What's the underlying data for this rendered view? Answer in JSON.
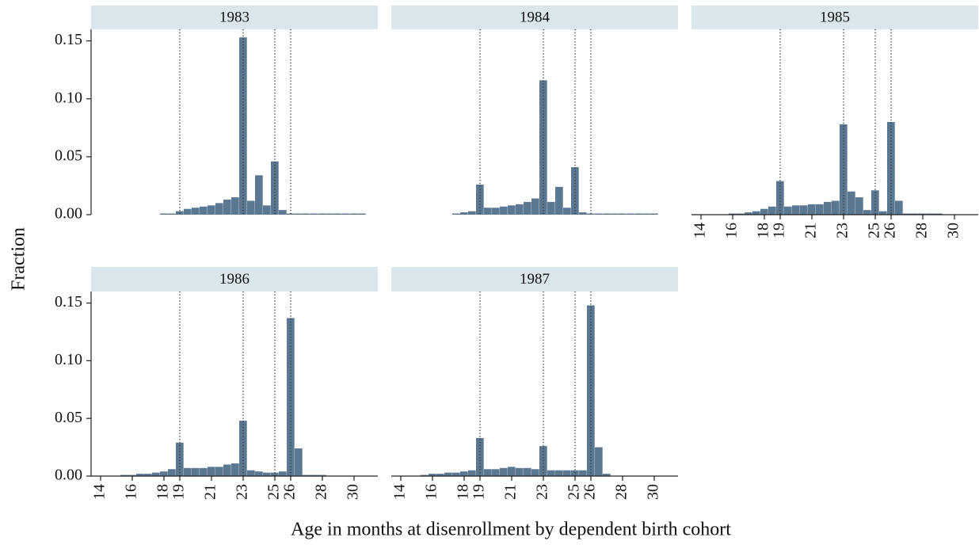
{
  "y_label": "Fraction",
  "x_label": "Age in months at disenrollment by dependent birth cohort",
  "chart_data": [
    {
      "type": "histogram",
      "title": "1983",
      "color": "#5b7892",
      "xlim": [
        13.4,
        31.5
      ],
      "ylim": [
        0,
        0.16
      ],
      "yticks": [
        {
          "value": 0,
          "label": "0.00"
        },
        {
          "value": 0.05,
          "label": "0.05"
        },
        {
          "value": 0.1,
          "label": "0.10"
        },
        {
          "value": 0.15,
          "label": "0.15"
        }
      ],
      "vlines": [
        19,
        23,
        25,
        26
      ],
      "bins": [
        15.25,
        15.75,
        16.25,
        16.75,
        17.25,
        17.75,
        18.25,
        18.75,
        19.25,
        19.75,
        20.25,
        20.75,
        21.25,
        21.75,
        22.25,
        22.75,
        23.25,
        23.75,
        24.25,
        24.75,
        25.25,
        25.75,
        26.25,
        26.75,
        27.25,
        27.75,
        28.25,
        28.75,
        29.25,
        29.75,
        30.25,
        30.75
      ],
      "values": [
        0,
        0,
        0,
        0,
        0,
        0.001,
        0.001,
        0.003,
        0.005,
        0.006,
        0.007,
        0.008,
        0.01,
        0.013,
        0.015,
        0.153,
        0.012,
        0.034,
        0.008,
        0.046,
        0.004,
        0.001,
        0.001,
        0.001,
        0.001,
        0.001,
        0.001,
        0.001,
        0.001,
        0.001,
        0.001
      ]
    },
    {
      "type": "histogram",
      "title": "1984",
      "color": "#5b7892",
      "xlim": [
        13.4,
        31.5
      ],
      "ylim": [
        0,
        0.16
      ],
      "vlines": [
        19,
        23,
        25,
        26
      ],
      "bins": [
        15.25,
        15.75,
        16.25,
        16.75,
        17.25,
        17.75,
        18.25,
        18.75,
        19.25,
        19.75,
        20.25,
        20.75,
        21.25,
        21.75,
        22.25,
        22.75,
        23.25,
        23.75,
        24.25,
        24.75,
        25.25,
        25.75,
        26.25,
        26.75,
        27.25,
        27.75,
        28.25,
        28.75,
        29.25,
        29.75,
        30.25,
        30.75
      ],
      "values": [
        0,
        0,
        0,
        0,
        0.001,
        0.002,
        0.003,
        0.026,
        0.006,
        0.006,
        0.007,
        0.008,
        0.009,
        0.011,
        0.014,
        0.116,
        0.011,
        0.024,
        0.006,
        0.041,
        0.002,
        0.001,
        0.001,
        0.001,
        0.001,
        0.001,
        0.001,
        0.001,
        0.001,
        0.001,
        0
      ]
    },
    {
      "type": "histogram",
      "title": "1985",
      "color": "#5b7892",
      "xlim": [
        13.4,
        31.5
      ],
      "ylim": [
        0,
        0.16
      ],
      "xticks": [
        14,
        16,
        18,
        19,
        21,
        23,
        25,
        26,
        28,
        30
      ],
      "vlines": [
        19,
        23,
        25,
        26
      ],
      "bins": [
        15.25,
        15.75,
        16.25,
        16.75,
        17.25,
        17.75,
        18.25,
        18.75,
        19.25,
        19.75,
        20.25,
        20.75,
        21.25,
        21.75,
        22.25,
        22.75,
        23.25,
        23.75,
        24.25,
        24.75,
        25.25,
        25.75,
        26.25,
        26.75,
        27.25,
        27.75,
        28.25,
        28.75,
        29.25,
        29.75,
        30.25,
        30.75
      ],
      "values": [
        0,
        0.001,
        0.001,
        0.002,
        0.003,
        0.005,
        0.007,
        0.029,
        0.007,
        0.008,
        0.008,
        0.009,
        0.009,
        0.011,
        0.012,
        0.078,
        0.02,
        0.015,
        0.004,
        0.021,
        0.003,
        0.08,
        0.012,
        0.001,
        0.001,
        0.001,
        0.001,
        0.001,
        0,
        0,
        0
      ]
    },
    {
      "type": "histogram",
      "title": "1986",
      "color": "#5b7892",
      "xlim": [
        13.4,
        31.5
      ],
      "ylim": [
        0,
        0.16
      ],
      "xticks": [
        14,
        16,
        18,
        19,
        21,
        23,
        25,
        26,
        28,
        30
      ],
      "yticks": [
        {
          "value": 0,
          "label": "0.00"
        },
        {
          "value": 0.05,
          "label": "0.05"
        },
        {
          "value": 0.1,
          "label": "0.10"
        },
        {
          "value": 0.15,
          "label": "0.15"
        }
      ],
      "vlines": [
        19,
        23,
        25,
        26
      ],
      "bins": [
        15.25,
        15.75,
        16.25,
        16.75,
        17.25,
        17.75,
        18.25,
        18.75,
        19.25,
        19.75,
        20.25,
        20.75,
        21.25,
        21.75,
        22.25,
        22.75,
        23.25,
        23.75,
        24.25,
        24.75,
        25.25,
        25.75,
        26.25,
        26.75,
        27.25,
        27.75,
        28.25,
        28.75,
        29.25,
        29.75,
        30.25,
        30.75
      ],
      "values": [
        0.001,
        0.001,
        0.002,
        0.002,
        0.003,
        0.004,
        0.006,
        0.029,
        0.007,
        0.007,
        0.007,
        0.008,
        0.008,
        0.01,
        0.011,
        0.048,
        0.005,
        0.004,
        0.003,
        0.003,
        0.004,
        0.137,
        0.024,
        0.001,
        0.001,
        0.001,
        0,
        0,
        0,
        0,
        0
      ]
    },
    {
      "type": "histogram",
      "title": "1987",
      "color": "#5b7892",
      "xlim": [
        13.4,
        31.5
      ],
      "ylim": [
        0,
        0.16
      ],
      "xticks": [
        14,
        16,
        18,
        19,
        21,
        23,
        25,
        26,
        28,
        30
      ],
      "vlines": [
        19,
        23,
        25,
        26
      ],
      "bins": [
        15.25,
        15.75,
        16.25,
        16.75,
        17.25,
        17.75,
        18.25,
        18.75,
        19.25,
        19.75,
        20.25,
        20.75,
        21.25,
        21.75,
        22.25,
        22.75,
        23.25,
        23.75,
        24.25,
        24.75,
        25.25,
        25.75,
        26.25,
        26.75,
        27.25,
        27.75,
        28.25,
        28.75,
        29.25,
        29.75,
        30.25,
        30.75
      ],
      "values": [
        0.001,
        0.002,
        0.002,
        0.003,
        0.003,
        0.004,
        0.005,
        0.033,
        0.006,
        0.006,
        0.007,
        0.008,
        0.007,
        0.007,
        0.006,
        0.026,
        0.005,
        0.005,
        0.005,
        0.005,
        0.005,
        0.148,
        0.025,
        0.002,
        0,
        0,
        0,
        0,
        0,
        0,
        0
      ]
    }
  ]
}
